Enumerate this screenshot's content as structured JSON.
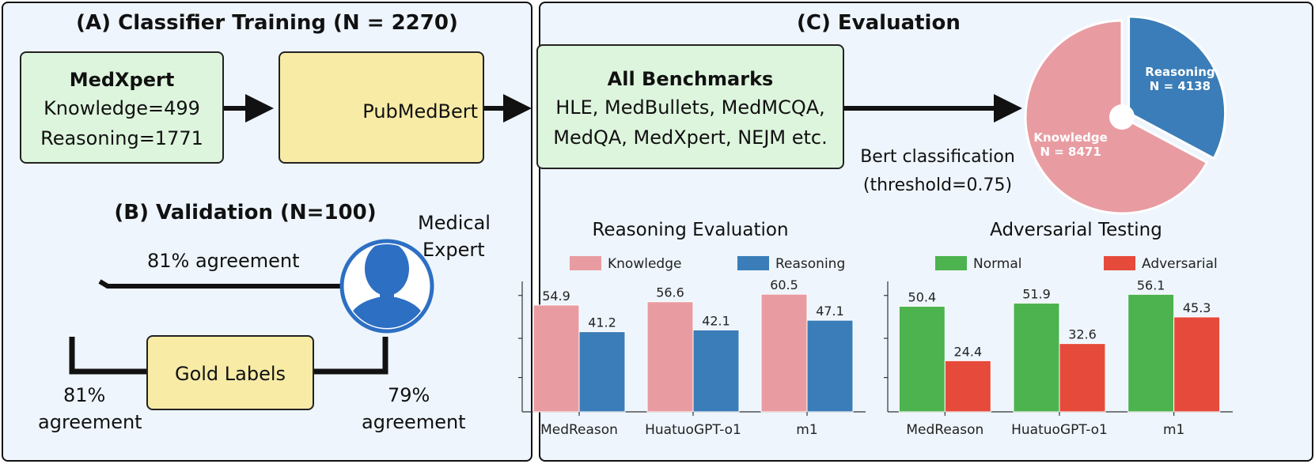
{
  "panel_a": {
    "title": "(A) Classifier Training (N = 2270)",
    "medxpert_box": {
      "title": "MedXpert",
      "line1": "Knowledge=499",
      "line2": "Reasoning=1771"
    },
    "model_box": {
      "label": "PubMedBert"
    }
  },
  "panel_b": {
    "title": "(B) Validation (N=100)",
    "expert_label_line1": "Medical",
    "expert_label_line2": "Expert",
    "top_agreement": "81% agreement",
    "gold_labels": "Gold Labels",
    "left_agreement_line1": "81%",
    "left_agreement_line2": "agreement",
    "right_agreement_line1": "79%",
    "right_agreement_line2": "agreement"
  },
  "panel_c": {
    "title": "(C) Evaluation",
    "benchmarks_box": {
      "title": "All Benchmarks",
      "line1": "HLE, MedBullets, MedMCQA,",
      "line2": "MedQA, MedXpert, NEJM etc."
    },
    "bert_caption_line1": "Bert classification",
    "bert_caption_line2": "(threshold=0.75)"
  },
  "chart_data": [
    {
      "type": "pie",
      "title": "",
      "labels": [
        "Reasoning",
        "Knowledge"
      ],
      "label_lines": [
        "Reasoning\nN = 4138",
        "Knowledge\nN = 8471"
      ],
      "values": [
        4138,
        8471
      ],
      "colors": [
        "#3a7db8",
        "#e89ca2"
      ],
      "exploded": "Reasoning"
    },
    {
      "type": "bar",
      "title": "Reasoning Evaluation",
      "categories": [
        "MedReason",
        "HuatuoGPT-o1",
        "m1"
      ],
      "series": [
        {
          "name": "Knowledge",
          "values": [
            54.9,
            56.6,
            60.5
          ],
          "color": "#e89ca2"
        },
        {
          "name": "Reasoning",
          "values": [
            41.2,
            42.1,
            47.1
          ],
          "color": "#3a7db8"
        }
      ],
      "xlabel": "",
      "ylabel": "",
      "ylim": [
        0,
        63
      ],
      "legend": "top"
    },
    {
      "type": "bar",
      "title": "Adversarial Testing",
      "categories": [
        "MedReason",
        "HuatuoGPT-o1",
        "m1"
      ],
      "series": [
        {
          "name": "Normal",
          "values": [
            50.4,
            51.9,
            56.1
          ],
          "color": "#4db34f"
        },
        {
          "name": "Adversarial",
          "values": [
            24.4,
            32.6,
            45.3
          ],
          "color": "#e54a3b"
        }
      ],
      "xlabel": "",
      "ylabel": "",
      "ylim": [
        0,
        58.5
      ],
      "legend": "top"
    }
  ]
}
